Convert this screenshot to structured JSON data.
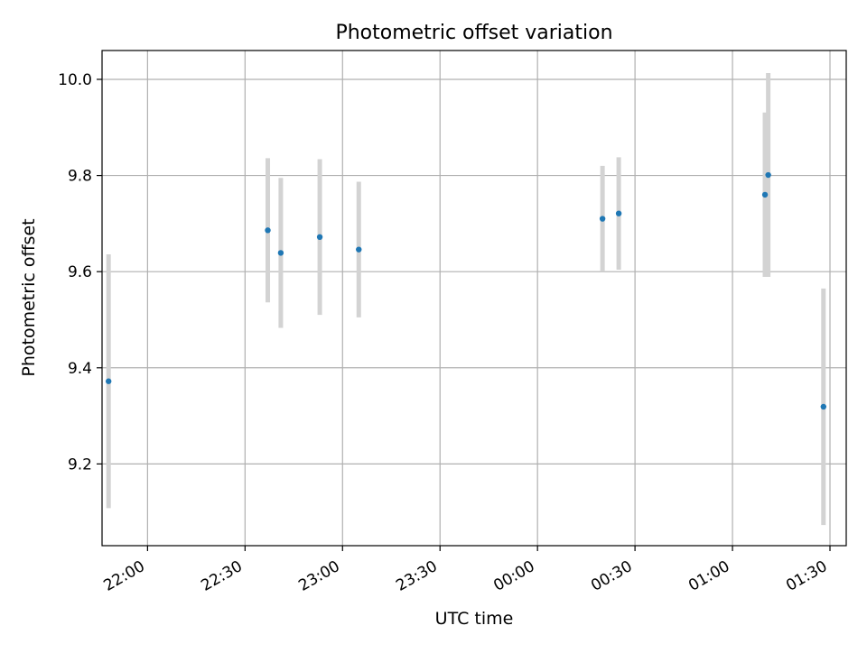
{
  "chart_data": {
    "type": "scatter",
    "title": "Photometric offset variation",
    "xlabel": "UTC time",
    "ylabel": "Photometric offset",
    "x_unit": "UTC time of night (HH:MM)",
    "x_ticks": [
      "22:00",
      "22:30",
      "23:00",
      "23:30",
      "00:00",
      "00:30",
      "01:00",
      "01:30"
    ],
    "y_ticks": [
      "9.2",
      "9.4",
      "9.6",
      "9.8",
      "10.0"
    ],
    "y_tick_values": [
      9.2,
      9.4,
      9.6,
      9.8,
      10.0
    ],
    "xlim": [
      "21:46",
      "01:35"
    ],
    "ylim": [
      9.03,
      10.06
    ],
    "grid": true,
    "point_color": "#1f77b4",
    "errorbar_color": "#d3d3d3",
    "points": [
      {
        "time": "21:48",
        "y": 9.372,
        "err": 0.264
      },
      {
        "time": "22:37",
        "y": 9.686,
        "err": 0.15
      },
      {
        "time": "22:41",
        "y": 9.639,
        "err": 0.156
      },
      {
        "time": "22:53",
        "y": 9.672,
        "err": 0.162
      },
      {
        "time": "23:05",
        "y": 9.646,
        "err": 0.141
      },
      {
        "time": "00:20",
        "y": 9.71,
        "err": 0.11
      },
      {
        "time": "00:25",
        "y": 9.721,
        "err": 0.117
      },
      {
        "time": "01:10",
        "y": 9.76,
        "err": 0.171
      },
      {
        "time": "01:11",
        "y": 9.801,
        "err": 0.212
      },
      {
        "time": "01:28",
        "y": 9.319,
        "err": 0.246
      }
    ]
  }
}
